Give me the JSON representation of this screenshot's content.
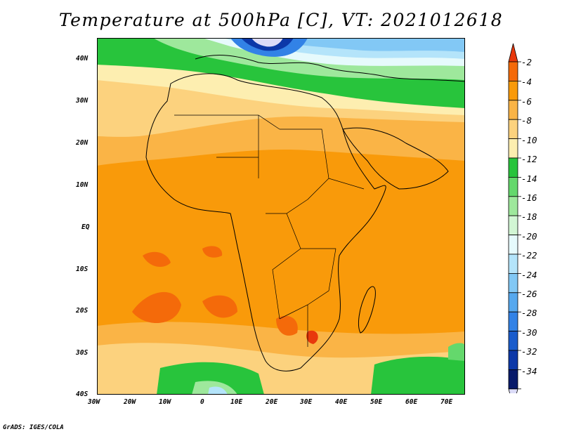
{
  "title": "Temperature at 500hPa [C], VT: 2021012618",
  "footer": "GrADS: IGES/COLA",
  "map": {
    "lat_labels": [
      "40N",
      "30N",
      "20N",
      "10N",
      "EQ",
      "10S",
      "20S",
      "30S",
      "40S"
    ],
    "lon_labels": [
      "30W",
      "20W",
      "10W",
      "0",
      "10E",
      "20E",
      "30E",
      "40E",
      "50E",
      "60E",
      "70E"
    ]
  },
  "colorbar": {
    "labels": [
      "-2",
      "-4",
      "-6",
      "-8",
      "-10",
      "-12",
      "-14",
      "-16",
      "-18",
      "-20",
      "-22",
      "-24",
      "-26",
      "-28",
      "-30",
      "-32",
      "-34"
    ],
    "colors": [
      "#e8380c",
      "#f46a0a",
      "#f99a0a",
      "#fab446",
      "#fcd27e",
      "#fdeeb0",
      "#28c43c",
      "#64d86c",
      "#9ee89c",
      "#d2f6d4",
      "#e6fafc",
      "#b4e4fa",
      "#82c8f5",
      "#56a8ee",
      "#3282e6",
      "#1a5ccc",
      "#0c38a8",
      "#081a6a",
      "#dcdcf8"
    ]
  }
}
